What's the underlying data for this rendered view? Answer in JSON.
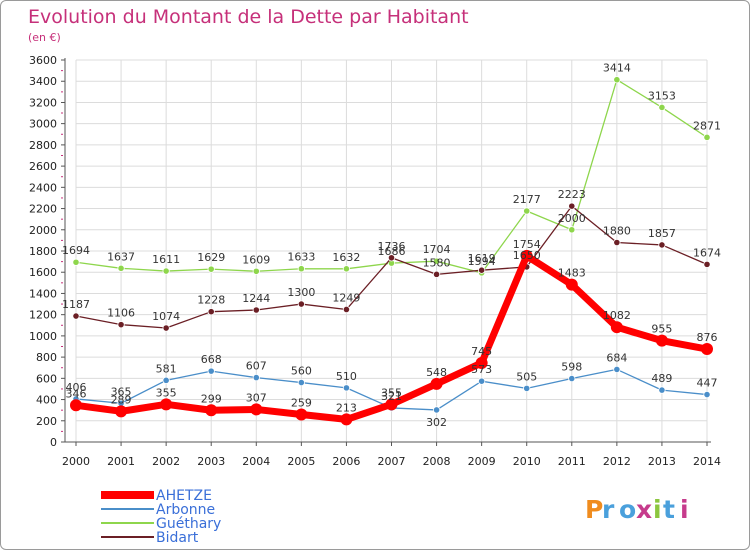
{
  "chart_data": {
    "type": "line",
    "title": "Evolution du Montant de la Dette par Habitant",
    "subtitle": "(en €)",
    "xlabel": "",
    "ylabel": "",
    "categories": [
      "2000",
      "2001",
      "2002",
      "2003",
      "2004",
      "2005",
      "2006",
      "2007",
      "2008",
      "2009",
      "2010",
      "2011",
      "2012",
      "2013",
      "2014"
    ],
    "yticks": [
      "0",
      "200",
      "400",
      "600",
      "800",
      "1000",
      "1200",
      "1400",
      "1600",
      "1800",
      "2000",
      "2200",
      "2400",
      "2600",
      "2800",
      "3000",
      "3200",
      "3400",
      "3600"
    ],
    "ylim": [
      0,
      3600
    ],
    "grid": true,
    "legend_position": "bottom-left",
    "series": [
      {
        "name": "Guéthary",
        "color": "#8ed64c",
        "values": [
          1694,
          1637,
          1611,
          1629,
          1609,
          1633,
          1632,
          1686,
          1704,
          1594,
          2177,
          2000,
          3414,
          3153,
          2871
        ]
      },
      {
        "name": "Bidart",
        "color": "#6b1f25",
        "values": [
          1187,
          1106,
          1074,
          1228,
          1244,
          1300,
          1249,
          1736,
          1580,
          1619,
          1650,
          2223,
          1880,
          1857,
          1674
        ]
      },
      {
        "name": "Arbonne",
        "color": "#4a8ec9",
        "values": [
          406,
          365,
          581,
          668,
          607,
          560,
          510,
          321,
          302,
          573,
          505,
          598,
          684,
          489,
          447
        ]
      },
      {
        "name": "AHETZE",
        "color": "#ff0000",
        "values": [
          346,
          289,
          355,
          299,
          307,
          259,
          213,
          355,
          548,
          745,
          1754,
          1483,
          1082,
          955,
          876
        ]
      }
    ],
    "legend": [
      "AHETZE",
      "Arbonne",
      "Guéthary",
      "Bidart"
    ]
  },
  "logo_text": "Proxiti"
}
